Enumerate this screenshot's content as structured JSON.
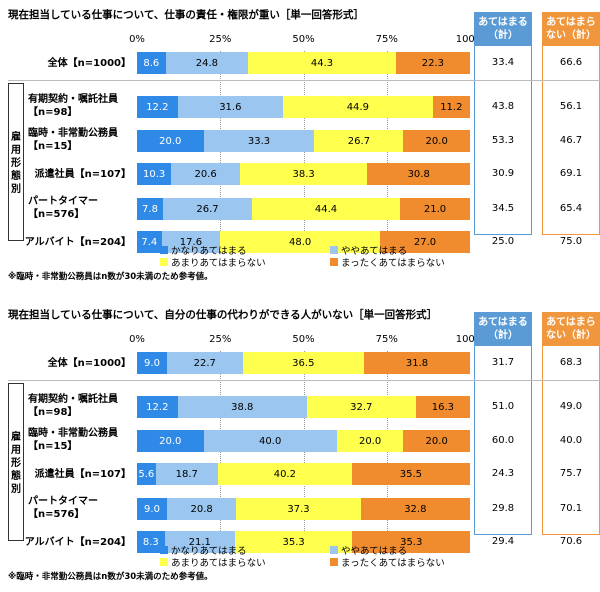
{
  "colors": {
    "s1": "#2e8ae6",
    "s2": "#9bc6ef",
    "s3": "#ffff4d",
    "s4": "#f08c2e",
    "blue_head": "#5a9bd5",
    "orange_head": "#f0963c"
  },
  "chart_data": [
    {
      "type": "bar",
      "title": "現在担当している仕事について、仕事の責任・権限が重い［単一回答形式］",
      "ticks": [
        "0%",
        "25%",
        "50%",
        "75%",
        "100%"
      ],
      "group_label": "雇用形態別",
      "sum_headers": [
        "あてはまる（計）",
        "あてはまらない（計）"
      ],
      "series": [
        {
          "name": "かなりあてはまる"
        },
        {
          "name": "ややあてはまる"
        },
        {
          "name": "あまりあてはまらない"
        },
        {
          "name": "まったくあてはまらない"
        }
      ],
      "rows": [
        {
          "label": "全体【n=1000】",
          "values": [
            8.6,
            24.8,
            44.3,
            22.3
          ],
          "labels": [
            "8.6",
            "24.8",
            "44.3",
            "22.3"
          ],
          "sums": [
            "33.4",
            "66.6"
          ]
        },
        {
          "label": "有期契約・嘱託社員【n=98】",
          "values": [
            12.2,
            31.6,
            44.9,
            11.2
          ],
          "labels": [
            "12.2",
            "31.6",
            "44.9",
            "11.2"
          ],
          "sums": [
            "43.8",
            "56.1"
          ]
        },
        {
          "label": "臨時・非常勤公務員【n=15】",
          "values": [
            20.0,
            33.3,
            26.7,
            20.0
          ],
          "labels": [
            "20.0",
            "33.3",
            "26.7",
            "20.0"
          ],
          "sums": [
            "53.3",
            "46.7"
          ]
        },
        {
          "label": "派遣社員【n=107】",
          "values": [
            10.3,
            20.6,
            38.3,
            30.8
          ],
          "labels": [
            "10.3",
            "20.6",
            "38.3",
            "30.8"
          ],
          "sums": [
            "30.9",
            "69.1"
          ]
        },
        {
          "label": "パートタイマー【n=576】",
          "values": [
            7.8,
            26.7,
            44.4,
            21.0
          ],
          "labels": [
            "7.8",
            "26.7",
            "44.4",
            "21.0"
          ],
          "sums": [
            "34.5",
            "65.4"
          ]
        },
        {
          "label": "アルバイト【n=204】",
          "values": [
            7.4,
            17.6,
            48.0,
            27.0
          ],
          "labels": [
            "7.4",
            "17.6",
            "48.0",
            "27.0"
          ],
          "sums": [
            "25.0",
            "75.0"
          ]
        }
      ],
      "note": "※臨時・非常勤公務員はn数が30未満のため参考値。"
    },
    {
      "type": "bar",
      "title": "現在担当している仕事について、自分の仕事の代わりができる人がいない［単一回答形式］",
      "ticks": [
        "0%",
        "25%",
        "50%",
        "75%",
        "100%"
      ],
      "group_label": "雇用形態別",
      "sum_headers": [
        "あてはまる（計）",
        "あてはまらない（計）"
      ],
      "series": [
        {
          "name": "かなりあてはまる"
        },
        {
          "name": "ややあてはまる"
        },
        {
          "name": "あまりあてはまらない"
        },
        {
          "name": "まったくあてはまらない"
        }
      ],
      "rows": [
        {
          "label": "全体【n=1000】",
          "values": [
            9.0,
            22.7,
            36.5,
            31.8
          ],
          "labels": [
            "9.0",
            "22.7",
            "36.5",
            "31.8"
          ],
          "sums": [
            "31.7",
            "68.3"
          ]
        },
        {
          "label": "有期契約・嘱託社員【n=98】",
          "values": [
            12.2,
            38.8,
            32.7,
            16.3
          ],
          "labels": [
            "12.2",
            "38.8",
            "32.7",
            "16.3"
          ],
          "sums": [
            "51.0",
            "49.0"
          ]
        },
        {
          "label": "臨時・非常勤公務員【n=15】",
          "values": [
            20.0,
            40.0,
            20.0,
            20.0
          ],
          "labels": [
            "20.0",
            "40.0",
            "20.0",
            "20.0"
          ],
          "sums": [
            "60.0",
            "40.0"
          ]
        },
        {
          "label": "派遣社員【n=107】",
          "values": [
            5.6,
            18.7,
            40.2,
            35.5
          ],
          "labels": [
            "5.6",
            "18.7",
            "40.2",
            "35.5"
          ],
          "sums": [
            "24.3",
            "75.7"
          ]
        },
        {
          "label": "パートタイマー【n=576】",
          "values": [
            9.0,
            20.8,
            37.3,
            32.8
          ],
          "labels": [
            "9.0",
            "20.8",
            "37.3",
            "32.8"
          ],
          "sums": [
            "29.8",
            "70.1"
          ]
        },
        {
          "label": "アルバイト【n=204】",
          "values": [
            8.3,
            21.1,
            35.3,
            35.3
          ],
          "labels": [
            "8.3",
            "21.1",
            "35.3",
            "35.3"
          ],
          "sums": [
            "29.4",
            "70.6"
          ]
        }
      ],
      "note": "※臨時・非常勤公務員はn数が30未満のため参考値。"
    }
  ]
}
